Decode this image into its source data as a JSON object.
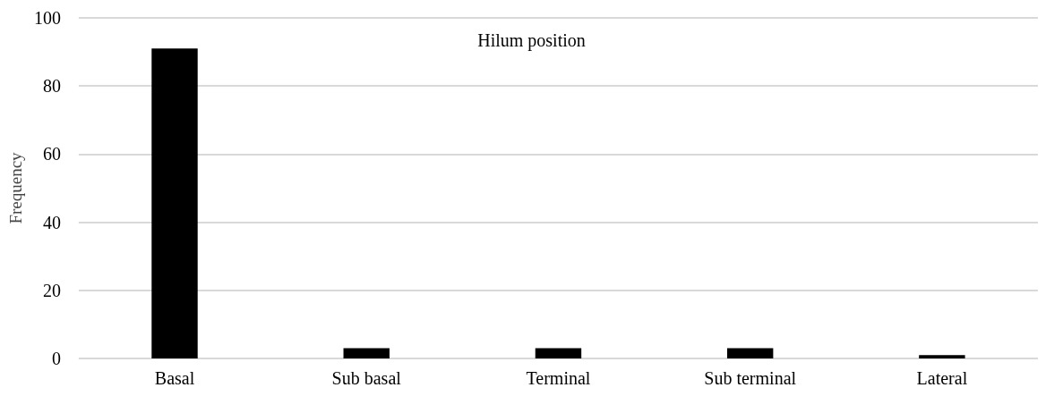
{
  "chart_data": {
    "type": "bar",
    "title": "Hilum position",
    "ylabel": "Frequency",
    "categories": [
      "Basal",
      "Sub basal",
      "Terminal",
      "Sub terminal",
      "Lateral"
    ],
    "values": [
      91,
      3,
      3,
      3,
      1
    ],
    "color": "#000000",
    "ylim": [
      0,
      100
    ],
    "yticks": [
      0,
      20,
      40,
      60,
      80,
      100
    ],
    "grid": "y"
  }
}
